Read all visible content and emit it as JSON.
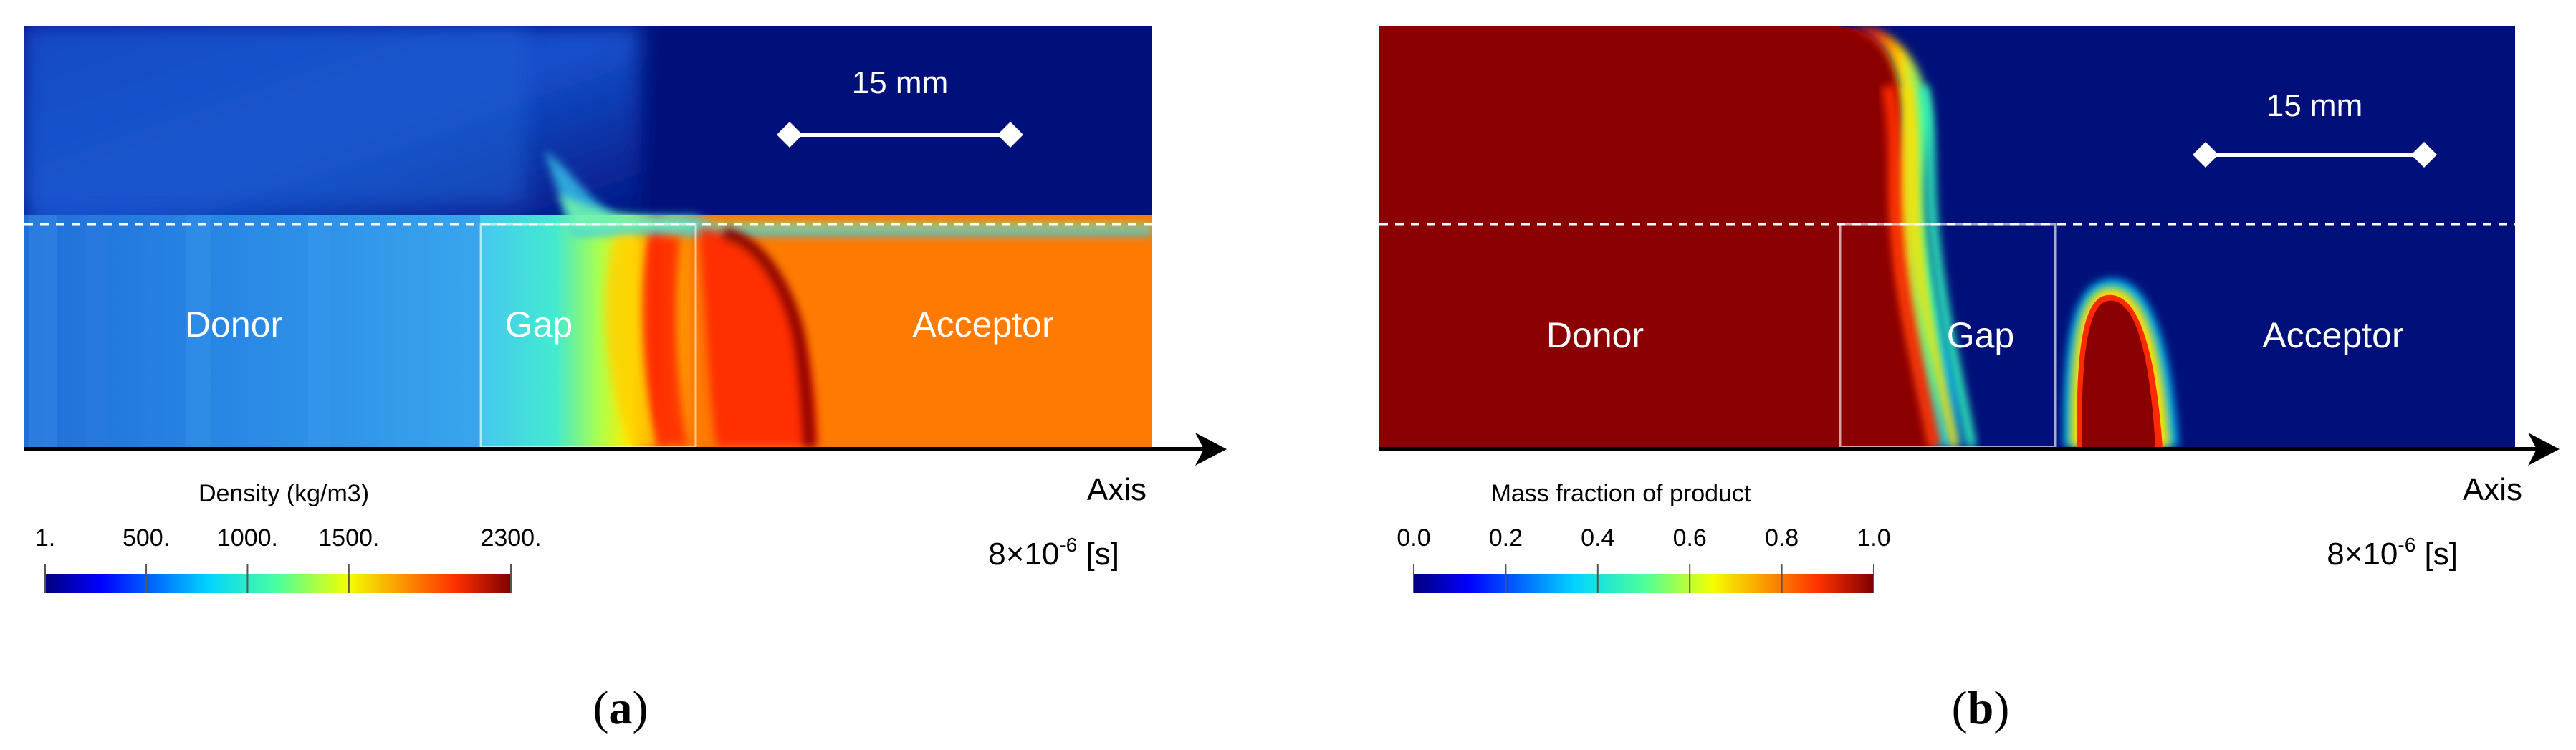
{
  "figure": {
    "panel_a": {
      "regions": {
        "donor": "Donor",
        "gap": "Gap",
        "acceptor": "Acceptor"
      },
      "scale_bar": "15 mm",
      "axis_label": "Axis",
      "time": {
        "base": "8×10",
        "exp": "-6",
        "unit": " [s]"
      },
      "colorbar": {
        "title": "Density (kg/m3)",
        "ticks": [
          "1.",
          "500.",
          "1000.",
          "1500.",
          "2300."
        ],
        "min": 1,
        "max": 2300,
        "tick_values": [
          1,
          500,
          1000,
          1500,
          2300
        ]
      },
      "caption": {
        "open": "(",
        "letter": "a",
        "close": ")"
      }
    },
    "panel_b": {
      "regions": {
        "donor": "Donor",
        "gap": "Gap",
        "acceptor": "Acceptor"
      },
      "scale_bar": "15 mm",
      "axis_label": "Axis",
      "time": {
        "base": "8×10",
        "exp": "-6",
        "unit": " [s]"
      },
      "colorbar": {
        "title": "Mass fraction of product",
        "ticks": [
          "0.0",
          "0.2",
          "0.4",
          "0.6",
          "0.8",
          "1.0"
        ],
        "min": 0,
        "max": 1,
        "tick_values": [
          0,
          0.2,
          0.4,
          0.6,
          0.8,
          1.0
        ]
      },
      "caption": {
        "open": "(",
        "letter": "b",
        "close": ")"
      }
    },
    "colors": {
      "background_blue": "#00107a",
      "dark_red": "#8b0000",
      "acceptor_orange": "#ff7a00",
      "donor_light_blue": "#1f7fe0"
    }
  }
}
